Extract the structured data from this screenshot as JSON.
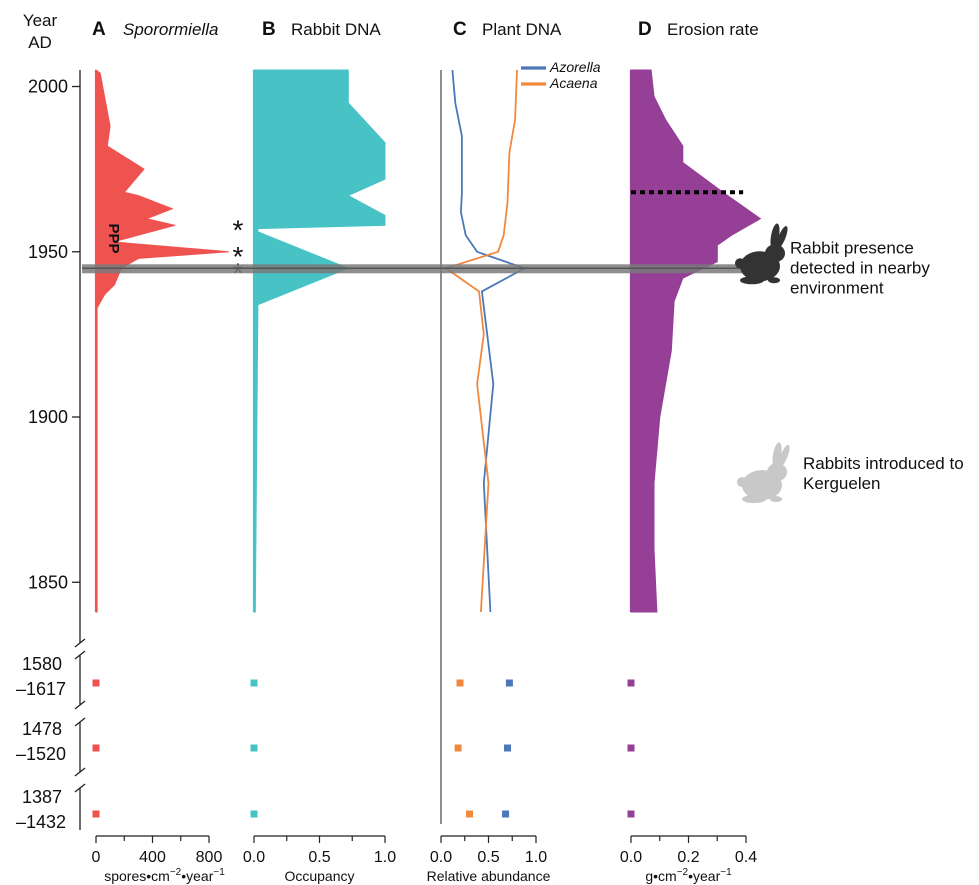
{
  "chart_data": {
    "type": "area",
    "y_axis": {
      "title_lines": [
        "Year",
        "AD"
      ],
      "ticks": [
        2000,
        1950,
        1900,
        1850
      ],
      "range": [
        1841,
        2005
      ],
      "break_labels": [
        {
          "line1": "1580",
          "line2": "–1617",
          "sample": "1580–1617"
        },
        {
          "line1": "1478",
          "line2": "–1520",
          "sample": "1478–1520"
        },
        {
          "line1": "1387",
          "line2": "–1432",
          "sample": "1387–1432"
        }
      ]
    },
    "highlight_year": 1945,
    "panels": [
      {
        "letter": "A",
        "title": "Sporormiella",
        "xlabel_text": "spores•cm",
        "xlabel_sup1": "−2",
        "xlabel_mid": "•year",
        "xlabel_sup2": "−1",
        "xlim": [
          0,
          800
        ],
        "xticks": [
          "0",
          "400",
          "800"
        ],
        "xtick_values": [
          0,
          400,
          800
        ],
        "color": "#ef5350",
        "annotation": "PPP",
        "series": [
          {
            "name": "",
            "points": [
              [
                0,
                2005
              ],
              [
                30,
                2004
              ],
              [
                60,
                1997
              ],
              [
                100,
                1988
              ],
              [
                80,
                1982
              ],
              [
                340,
                1975
              ],
              [
                200,
                1968
              ],
              [
                300,
                1967
              ],
              [
                540,
                1963
              ],
              [
                360,
                1960
              ],
              [
                560,
                1958
              ],
              [
                300,
                1955
              ],
              [
                120,
                1953
              ],
              [
                940,
                1950
              ],
              [
                300,
                1948
              ],
              [
                260,
                1947
              ],
              [
                180,
                1945
              ],
              [
                130,
                1940
              ],
              [
                60,
                1937
              ],
              [
                8,
                1933
              ],
              [
                8,
                1841
              ]
            ]
          }
        ],
        "pre_samples": [
          0,
          0,
          0
        ],
        "asterisks": [
          "*",
          "*",
          "*"
        ]
      },
      {
        "letter": "B",
        "title": "Rabbit DNA",
        "xlabel_text": "Occupancy",
        "xlim": [
          0,
          1
        ],
        "xticks": [
          "0.0",
          "0.5",
          "1.0"
        ],
        "xtick_values": [
          0,
          0.5,
          1
        ],
        "color": "#47c3c6",
        "series": [
          {
            "name": "",
            "points": [
              [
                0.72,
                2005
              ],
              [
                0.72,
                1995
              ],
              [
                1.0,
                1983
              ],
              [
                1.0,
                1972
              ],
              [
                0.72,
                1967
              ],
              [
                1.0,
                1961
              ],
              [
                1.0,
                1958
              ],
              [
                0.03,
                1957
              ],
              [
                0.03,
                1956
              ],
              [
                0.72,
                1945
              ],
              [
                0.03,
                1934
              ],
              [
                0.01,
                1841
              ]
            ]
          }
        ],
        "pre_samples": [
          0,
          0,
          0
        ]
      },
      {
        "letter": "C",
        "title": "Plant DNA",
        "xlabel_text": "Relative abundance",
        "xlim": [
          0,
          1
        ],
        "xticks": [
          "0.0",
          "0.5",
          "1.0"
        ],
        "xtick_values": [
          0,
          0.5,
          1
        ],
        "series": [
          {
            "name": "Azorella",
            "color": "#4b78b8",
            "points": [
              [
                0.12,
                2005
              ],
              [
                0.15,
                1995
              ],
              [
                0.22,
                1985
              ],
              [
                0.22,
                1975
              ],
              [
                0.22,
                1968
              ],
              [
                0.21,
                1962
              ],
              [
                0.26,
                1955
              ],
              [
                0.38,
                1950
              ],
              [
                0.88,
                1945
              ],
              [
                0.43,
                1938
              ],
              [
                0.55,
                1910
              ],
              [
                0.45,
                1880
              ],
              [
                0.52,
                1841
              ]
            ],
            "pre_samples": [
              0.72,
              0.7,
              0.68
            ]
          },
          {
            "name": "Acaena",
            "color": "#f0883e",
            "points": [
              [
                0.8,
                2005
              ],
              [
                0.78,
                1990
              ],
              [
                0.72,
                1980
              ],
              [
                0.7,
                1965
              ],
              [
                0.66,
                1955
              ],
              [
                0.6,
                1950
              ],
              [
                0.05,
                1945
              ],
              [
                0.4,
                1938
              ],
              [
                0.45,
                1925
              ],
              [
                0.38,
                1910
              ],
              [
                0.5,
                1880
              ],
              [
                0.42,
                1841
              ]
            ],
            "pre_samples": [
              0.2,
              0.18,
              0.3
            ]
          }
        ],
        "legend_position": "top-right"
      },
      {
        "letter": "D",
        "title": "Erosion rate",
        "xlabel_text": "g•cm",
        "xlabel_sup1": "−2",
        "xlabel_mid": "•year",
        "xlabel_sup2": "−1",
        "xlim": [
          0,
          0.4
        ],
        "xticks": [
          "0.0",
          "0.2",
          "0.4"
        ],
        "xtick_values": [
          0,
          0.2,
          0.4
        ],
        "color": "#953f97",
        "series": [
          {
            "name": "",
            "points": [
              [
                0.07,
                2005
              ],
              [
                0.08,
                1997
              ],
              [
                0.12,
                1990
              ],
              [
                0.18,
                1982
              ],
              [
                0.18,
                1977
              ],
              [
                0.32,
                1968
              ],
              [
                0.45,
                1960
              ],
              [
                0.35,
                1955
              ],
              [
                0.3,
                1952
              ],
              [
                0.3,
                1947
              ],
              [
                0.18,
                1942
              ],
              [
                0.15,
                1935
              ],
              [
                0.14,
                1920
              ],
              [
                0.1,
                1900
              ],
              [
                0.08,
                1880
              ],
              [
                0.08,
                1860
              ],
              [
                0.09,
                1841
              ]
            ]
          }
        ],
        "dotted_line": {
          "year": 1968,
          "x_from": 0.0,
          "x_to": 0.39
        },
        "pre_samples": [
          0.0,
          0.0,
          0.0
        ]
      }
    ],
    "annotations": [
      {
        "year": 1945,
        "lines": [
          "Rabbit presence",
          "detected in nearby",
          "environment"
        ],
        "icon": "rabbit-dark-icon",
        "icon_color": "#333333"
      },
      {
        "year": 1880,
        "lines": [
          "Rabbits introduced to",
          "Kerguelen"
        ],
        "icon": "rabbit-light-icon",
        "icon_color": "#c8c8c8"
      }
    ]
  }
}
